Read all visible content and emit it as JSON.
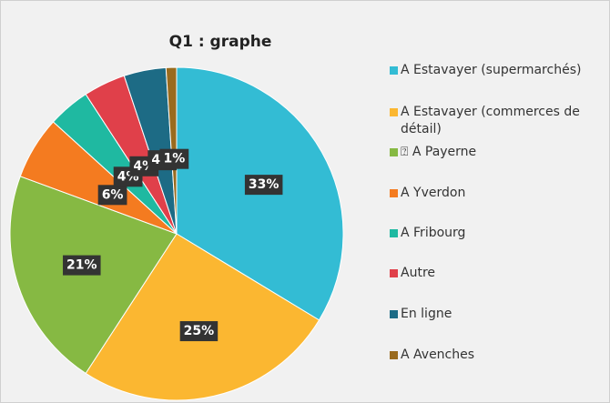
{
  "chart_data": {
    "type": "pie",
    "title": "Q1 : graphe",
    "categories": [
      "A Estavayer (supermarchés)",
      "A Estavayer (commerces de détail)",
      "⍰ A Payerne",
      "A Yverdon",
      "A Fribourg",
      "Autre",
      "En ligne",
      "A Avenches"
    ],
    "values": [
      33,
      25,
      21,
      6,
      4,
      4,
      4,
      1
    ],
    "value_labels": [
      "33%",
      "25%",
      "21%",
      "6%",
      "4%",
      "4%",
      "4%",
      "1%"
    ],
    "colors": [
      "#33bcd4",
      "#fbb731",
      "#86b943",
      "#f47b20",
      "#1fb9a1",
      "#e0404a",
      "#1d6b85",
      "#9a6b1e"
    ],
    "legend": "right"
  }
}
